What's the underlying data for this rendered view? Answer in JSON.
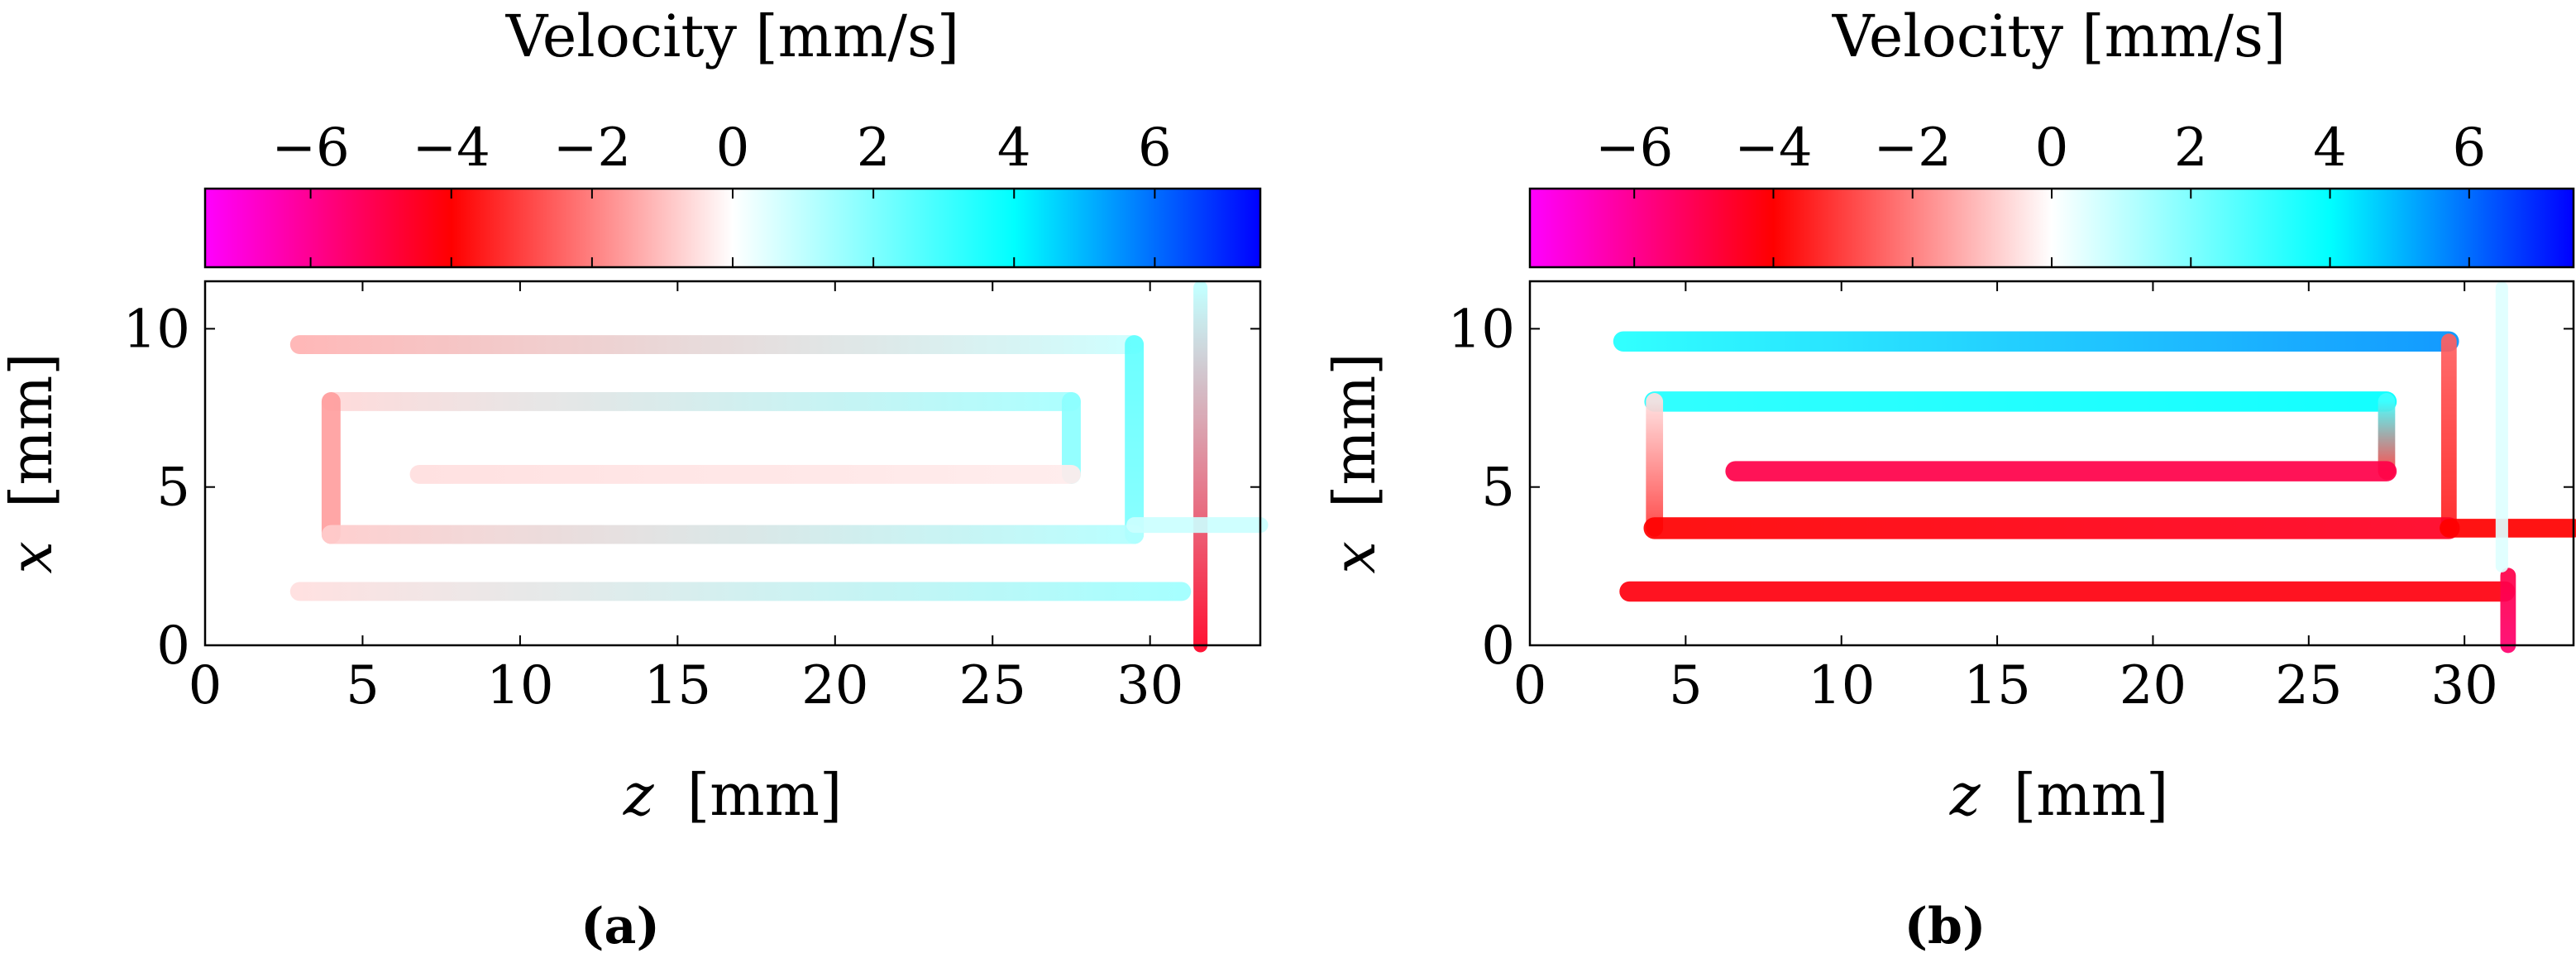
{
  "chart_data": [
    {
      "type": "heatmap",
      "caption": "(a)",
      "colorbar": {
        "label": "Velocity [mm/s]",
        "range": [
          -7.5,
          7.5
        ],
        "ticks": [
          -6,
          -4,
          -2,
          0,
          2,
          4,
          6
        ],
        "tick_labels": [
          "−6",
          "−4",
          "−2",
          "0",
          "2",
          "4",
          "6"
        ],
        "colormap": [
          {
            "value": -7.5,
            "color": "#ff00ff"
          },
          {
            "value": -4,
            "color": "#ff0000"
          },
          {
            "value": 0,
            "color": "#ffffff"
          },
          {
            "value": 4,
            "color": "#00ffff"
          },
          {
            "value": 7.5,
            "color": "#0000ff"
          }
        ]
      },
      "x_axis": {
        "var": "z",
        "unit": "[mm]",
        "range": [
          0,
          33.5
        ],
        "ticks": [
          0,
          5,
          10,
          15,
          20,
          25,
          30
        ]
      },
      "y_axis": {
        "var": "x",
        "unit": "[mm]",
        "range": [
          0,
          11.5
        ],
        "ticks": [
          0,
          5,
          10
        ]
      },
      "channels": [
        {
          "shape": "line",
          "points": [
            [
              3,
              9.5
            ],
            [
              29.5,
              9.5
            ]
          ],
          "v0": -1.2,
          "v1": 0.8,
          "width": 0.6
        },
        {
          "shape": "line",
          "points": [
            [
              29.5,
              9.5
            ],
            [
              29.5,
              3.5
            ]
          ],
          "v0": 2.5,
          "v1": 2.0,
          "width": 0.6
        },
        {
          "shape": "line",
          "points": [
            [
              4,
              7.7
            ],
            [
              27.5,
              7.7
            ]
          ],
          "v0": -0.6,
          "v1": 1.4,
          "width": 0.6
        },
        {
          "shape": "line",
          "points": [
            [
              4,
              7.7
            ],
            [
              4,
              3.5
            ]
          ],
          "v0": -1.5,
          "v1": -1.5,
          "width": 0.6
        },
        {
          "shape": "line",
          "points": [
            [
              27.5,
              7.7
            ],
            [
              27.5,
              5.4
            ]
          ],
          "v0": 1.8,
          "v1": 1.8,
          "width": 0.6
        },
        {
          "shape": "line",
          "points": [
            [
              6.8,
              5.4
            ],
            [
              27.5,
              5.4
            ]
          ],
          "v0": -0.5,
          "v1": -0.3,
          "width": 0.6
        },
        {
          "shape": "line",
          "points": [
            [
              4,
              3.5
            ],
            [
              29.5,
              3.5
            ]
          ],
          "v0": -0.8,
          "v1": 1.2,
          "width": 0.6
        },
        {
          "shape": "line",
          "points": [
            [
              3,
              1.7
            ],
            [
              31,
              1.7
            ]
          ],
          "v0": -0.5,
          "v1": 1.5,
          "width": 0.6
        },
        {
          "shape": "line",
          "points": [
            [
              31.6,
              11.3
            ],
            [
              31.6,
              0
            ]
          ],
          "v0": 1.0,
          "v1": -4.5,
          "width": 0.45
        },
        {
          "shape": "line",
          "points": [
            [
              29.5,
              3.8
            ],
            [
              33.5,
              3.8
            ]
          ],
          "v0": 0.8,
          "v1": 0.8,
          "width": 0.5
        }
      ]
    },
    {
      "type": "heatmap",
      "caption": "(b)",
      "colorbar": {
        "label": "Velocity [mm/s]",
        "range": [
          -7.5,
          7.5
        ],
        "ticks": [
          -6,
          -4,
          -2,
          0,
          2,
          4,
          6
        ],
        "tick_labels": [
          "−6",
          "−4",
          "−2",
          "0",
          "2",
          "4",
          "6"
        ],
        "colormap": [
          {
            "value": -7.5,
            "color": "#ff00ff"
          },
          {
            "value": -4,
            "color": "#ff0000"
          },
          {
            "value": 0,
            "color": "#ffffff"
          },
          {
            "value": 4,
            "color": "#00ffff"
          },
          {
            "value": 7.5,
            "color": "#0000ff"
          }
        ]
      },
      "x_axis": {
        "var": "z",
        "unit": "[mm]",
        "range": [
          0,
          33.5
        ],
        "ticks": [
          0,
          5,
          10,
          15,
          20,
          25,
          30
        ]
      },
      "y_axis": {
        "var": "x",
        "unit": "[mm]",
        "range": [
          0,
          11.5
        ],
        "ticks": [
          0,
          5,
          10
        ]
      },
      "channels": [
        {
          "shape": "line",
          "points": [
            [
              3,
              9.6
            ],
            [
              29.5,
              9.6
            ]
          ],
          "v0": 3.5,
          "v1": 5.5,
          "width": 0.65
        },
        {
          "shape": "line",
          "points": [
            [
              29.5,
              9.6
            ],
            [
              29.5,
              3.7
            ]
          ],
          "v0": -2.5,
          "v1": -3.5,
          "width": 0.5
        },
        {
          "shape": "line",
          "points": [
            [
              4,
              7.7
            ],
            [
              27.5,
              7.7
            ]
          ],
          "v0": 3.5,
          "v1": 4.0,
          "width": 0.65
        },
        {
          "shape": "line",
          "points": [
            [
              4,
              7.7
            ],
            [
              4,
              3.7
            ]
          ],
          "v0": -0.5,
          "v1": -3.0,
          "width": 0.55
        },
        {
          "shape": "line",
          "points": [
            [
              27.5,
              7.7
            ],
            [
              27.5,
              5.5
            ]
          ],
          "v0": 3.0,
          "v1": -3.0,
          "width": 0.55
        },
        {
          "shape": "line",
          "points": [
            [
              6.6,
              5.5
            ],
            [
              27.5,
              5.5
            ]
          ],
          "v0": -5.0,
          "v1": -5.0,
          "width": 0.65
        },
        {
          "shape": "line",
          "points": [
            [
              4,
              3.7
            ],
            [
              29.5,
              3.7
            ]
          ],
          "v0": -4.0,
          "v1": -4.5,
          "width": 0.7
        },
        {
          "shape": "line",
          "points": [
            [
              29.5,
              3.7
            ],
            [
              33.5,
              3.7
            ]
          ],
          "v0": -4.0,
          "v1": -4.0,
          "width": 0.6
        },
        {
          "shape": "line",
          "points": [
            [
              3.2,
              1.7
            ],
            [
              31.3,
              1.7
            ]
          ],
          "v0": -4.2,
          "v1": -4.2,
          "width": 0.65
        },
        {
          "shape": "line",
          "points": [
            [
              31.4,
              2.2
            ],
            [
              31.4,
              0
            ]
          ],
          "v0": -5.0,
          "v1": -5.5,
          "width": 0.5
        },
        {
          "shape": "line",
          "points": [
            [
              31.2,
              11.3
            ],
            [
              31.2,
              2.5
            ]
          ],
          "v0": 0.5,
          "v1": 0.5,
          "width": 0.4
        }
      ]
    }
  ]
}
